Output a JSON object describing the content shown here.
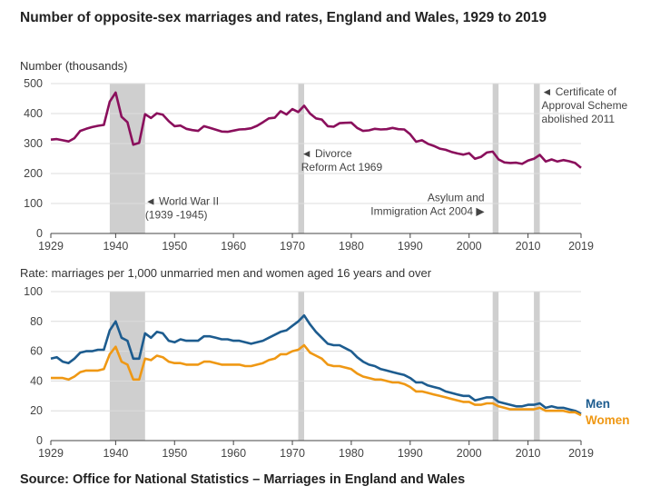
{
  "title": "Number of opposite-sex marriages and rates, England and Wales, 1929 to 2019",
  "source": "Source: Office for National Statistics – Marriages in England and Wales",
  "colors": {
    "marriages": "#8a0f5c",
    "men": "#1d5c8f",
    "women": "#ef9814",
    "shade": "#cfcfcf"
  },
  "chart_data": [
    {
      "type": "line",
      "ylabel": "Number (thousands)",
      "xlim": [
        1929,
        2019
      ],
      "ylim": [
        0,
        500
      ],
      "x_ticks": [
        1929,
        1940,
        1950,
        1960,
        1970,
        1980,
        1990,
        2000,
        2010,
        2019
      ],
      "y_ticks": [
        0,
        100,
        200,
        300,
        400,
        500
      ],
      "shaded_periods": [
        [
          1939,
          1945
        ],
        [
          1971,
          1972
        ],
        [
          2004,
          2005
        ],
        [
          2011,
          2012
        ]
      ],
      "annotations": [
        {
          "lines": [
            "◄ World War II",
            "(1939 -1945)"
          ],
          "x": 1945,
          "y": 95,
          "anchor": "start"
        },
        {
          "lines": [
            "◄ Divorce",
            "Reform Act 1969"
          ],
          "x": 1971.5,
          "y": 255,
          "anchor": "start"
        },
        {
          "lines": [
            "Asylum and",
            "Immigration Act 2004 ▶"
          ],
          "x": 2002.6,
          "y": 108,
          "anchor": "end"
        },
        {
          "lines": [
            "◄ Certificate of",
            "Approval Scheme",
            "abolished 2011"
          ],
          "x": 2012.3,
          "y": 460,
          "anchor": "start"
        }
      ],
      "series": [
        {
          "color": "#8a0f5c",
          "x": [
            1929,
            1930,
            1931,
            1932,
            1933,
            1934,
            1935,
            1936,
            1937,
            1938,
            1939,
            1940,
            1941,
            1942,
            1943,
            1944,
            1945,
            1946,
            1947,
            1948,
            1949,
            1950,
            1951,
            1952,
            1953,
            1954,
            1955,
            1956,
            1957,
            1958,
            1959,
            1960,
            1961,
            1962,
            1963,
            1964,
            1965,
            1966,
            1967,
            1968,
            1969,
            1970,
            1971,
            1972,
            1973,
            1974,
            1975,
            1976,
            1977,
            1978,
            1979,
            1980,
            1981,
            1982,
            1983,
            1984,
            1985,
            1986,
            1987,
            1988,
            1989,
            1990,
            1991,
            1992,
            1993,
            1994,
            1995,
            1996,
            1997,
            1998,
            1999,
            2000,
            2001,
            2002,
            2003,
            2004,
            2005,
            2006,
            2007,
            2008,
            2009,
            2010,
            2011,
            2012,
            2013,
            2014,
            2015,
            2016,
            2017,
            2018,
            2019
          ],
          "values": [
            313,
            315,
            311,
            307,
            318,
            342,
            349,
            355,
            359,
            362,
            440,
            470,
            389,
            371,
            296,
            302,
            398,
            385,
            401,
            396,
            375,
            358,
            360,
            349,
            345,
            342,
            358,
            352,
            346,
            340,
            339,
            343,
            347,
            348,
            351,
            359,
            371,
            384,
            386,
            408,
            397,
            415,
            405,
            426,
            400,
            384,
            380,
            358,
            356,
            368,
            369,
            370,
            352,
            342,
            344,
            349,
            347,
            348,
            352,
            348,
            347,
            331,
            306,
            311,
            299,
            292,
            283,
            279,
            272,
            267,
            263,
            268,
            249,
            255,
            270,
            273,
            247,
            237,
            235,
            236,
            232,
            243,
            249,
            262,
            240,
            247,
            240,
            245,
            241,
            235,
            219
          ]
        }
      ]
    },
    {
      "type": "line",
      "ylabel": "Rate: marriages per 1,000 unmarried men and women aged 16 years and over",
      "xlim": [
        1929,
        2019
      ],
      "ylim": [
        0,
        100
      ],
      "x_ticks": [
        1929,
        1940,
        1950,
        1960,
        1970,
        1980,
        1990,
        2000,
        2010,
        2019
      ],
      "y_ticks": [
        0,
        20,
        40,
        60,
        80,
        100
      ],
      "shaded_periods": [
        [
          1939,
          1945
        ],
        [
          1971,
          1972
        ],
        [
          2004,
          2005
        ],
        [
          2011,
          2012
        ]
      ],
      "series": [
        {
          "name": "Men",
          "color": "#1d5c8f",
          "x": [
            1929,
            1930,
            1931,
            1932,
            1933,
            1934,
            1935,
            1936,
            1937,
            1938,
            1939,
            1940,
            1941,
            1942,
            1943,
            1944,
            1945,
            1946,
            1947,
            1948,
            1949,
            1950,
            1951,
            1952,
            1953,
            1954,
            1955,
            1956,
            1957,
            1958,
            1959,
            1960,
            1961,
            1962,
            1963,
            1964,
            1965,
            1966,
            1967,
            1968,
            1969,
            1970,
            1971,
            1972,
            1973,
            1974,
            1975,
            1976,
            1977,
            1978,
            1979,
            1980,
            1981,
            1982,
            1983,
            1984,
            1985,
            1986,
            1987,
            1988,
            1989,
            1990,
            1991,
            1992,
            1993,
            1994,
            1995,
            1996,
            1997,
            1998,
            1999,
            2000,
            2001,
            2002,
            2003,
            2004,
            2005,
            2006,
            2007,
            2008,
            2009,
            2010,
            2011,
            2012,
            2013,
            2014,
            2015,
            2016,
            2017,
            2018,
            2019
          ],
          "values": [
            55,
            56,
            53,
            52,
            55,
            59,
            60,
            60,
            61,
            61,
            74,
            80,
            69,
            67,
            55,
            55,
            72,
            69,
            73,
            72,
            67,
            66,
            68,
            67,
            67,
            67,
            70,
            70,
            69,
            68,
            68,
            67,
            67,
            66,
            65,
            66,
            67,
            69,
            71,
            73,
            74,
            77,
            80,
            84,
            78,
            73,
            69,
            65,
            64,
            64,
            62,
            60,
            56,
            53,
            51,
            50,
            48,
            47,
            46,
            45,
            44,
            42,
            39,
            39,
            37,
            36,
            35,
            33,
            32,
            31,
            30,
            30,
            27,
            28,
            29,
            29,
            26,
            25,
            24,
            23,
            23,
            24,
            24,
            25,
            22,
            23,
            22,
            22,
            21,
            20,
            18
          ]
        },
        {
          "name": "Women",
          "color": "#ef9814",
          "x": [
            1929,
            1930,
            1931,
            1932,
            1933,
            1934,
            1935,
            1936,
            1937,
            1938,
            1939,
            1940,
            1941,
            1942,
            1943,
            1944,
            1945,
            1946,
            1947,
            1948,
            1949,
            1950,
            1951,
            1952,
            1953,
            1954,
            1955,
            1956,
            1957,
            1958,
            1959,
            1960,
            1961,
            1962,
            1963,
            1964,
            1965,
            1966,
            1967,
            1968,
            1969,
            1970,
            1971,
            1972,
            1973,
            1974,
            1975,
            1976,
            1977,
            1978,
            1979,
            1980,
            1981,
            1982,
            1983,
            1984,
            1985,
            1986,
            1987,
            1988,
            1989,
            1990,
            1991,
            1992,
            1993,
            1994,
            1995,
            1996,
            1997,
            1998,
            1999,
            2000,
            2001,
            2002,
            2003,
            2004,
            2005,
            2006,
            2007,
            2008,
            2009,
            2010,
            2011,
            2012,
            2013,
            2014,
            2015,
            2016,
            2017,
            2018,
            2019
          ],
          "values": [
            42,
            42,
            42,
            41,
            43,
            46,
            47,
            47,
            47,
            48,
            58,
            63,
            53,
            51,
            41,
            41,
            55,
            54,
            57,
            56,
            53,
            52,
            52,
            51,
            51,
            51,
            53,
            53,
            52,
            51,
            51,
            51,
            51,
            50,
            50,
            51,
            52,
            54,
            55,
            58,
            58,
            60,
            61,
            64,
            59,
            57,
            55,
            51,
            50,
            50,
            49,
            48,
            45,
            43,
            42,
            41,
            41,
            40,
            39,
            39,
            38,
            36,
            33,
            33,
            32,
            31,
            30,
            29,
            28,
            27,
            26,
            26,
            24,
            24,
            25,
            25,
            23,
            22,
            21,
            21,
            21,
            21,
            21,
            22,
            20,
            20,
            20,
            20,
            19,
            19,
            17
          ]
        }
      ]
    }
  ]
}
